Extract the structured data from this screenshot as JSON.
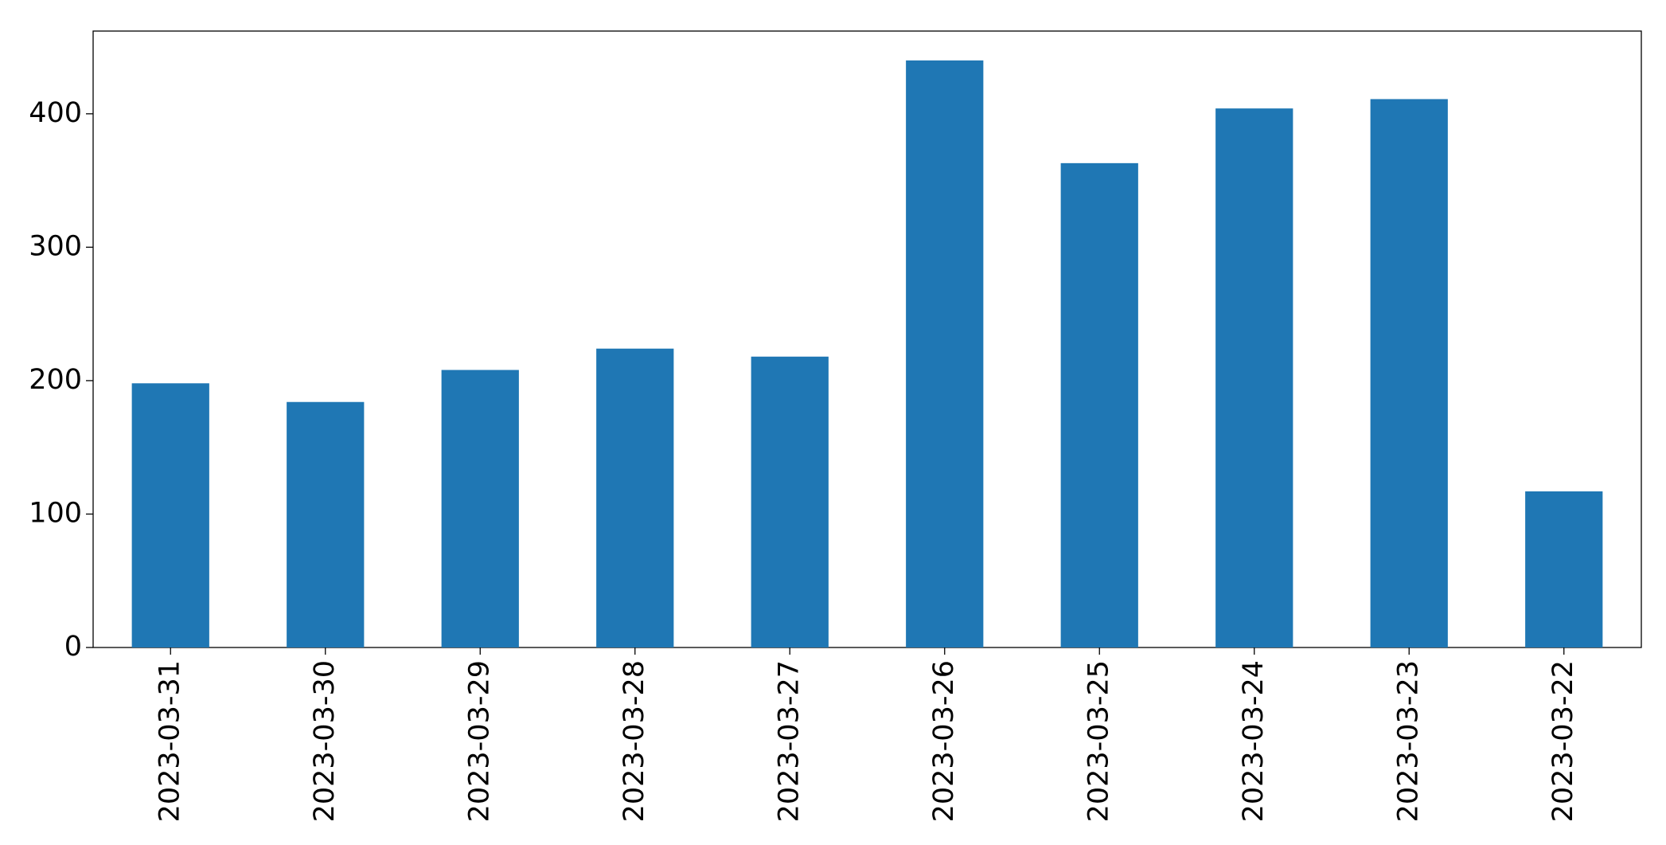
{
  "chart_data": {
    "type": "bar",
    "categories": [
      "2023-03-31",
      "2023-03-30",
      "2023-03-29",
      "2023-03-28",
      "2023-03-27",
      "2023-03-26",
      "2023-03-25",
      "2023-03-24",
      "2023-03-23",
      "2023-03-22"
    ],
    "values": [
      198,
      184,
      208,
      224,
      218,
      440,
      363,
      404,
      411,
      117
    ],
    "color": "#1f77b4",
    "ylim": [
      0,
      462
    ],
    "yticks": [
      0,
      100,
      200,
      300,
      400
    ],
    "grid": false
  }
}
